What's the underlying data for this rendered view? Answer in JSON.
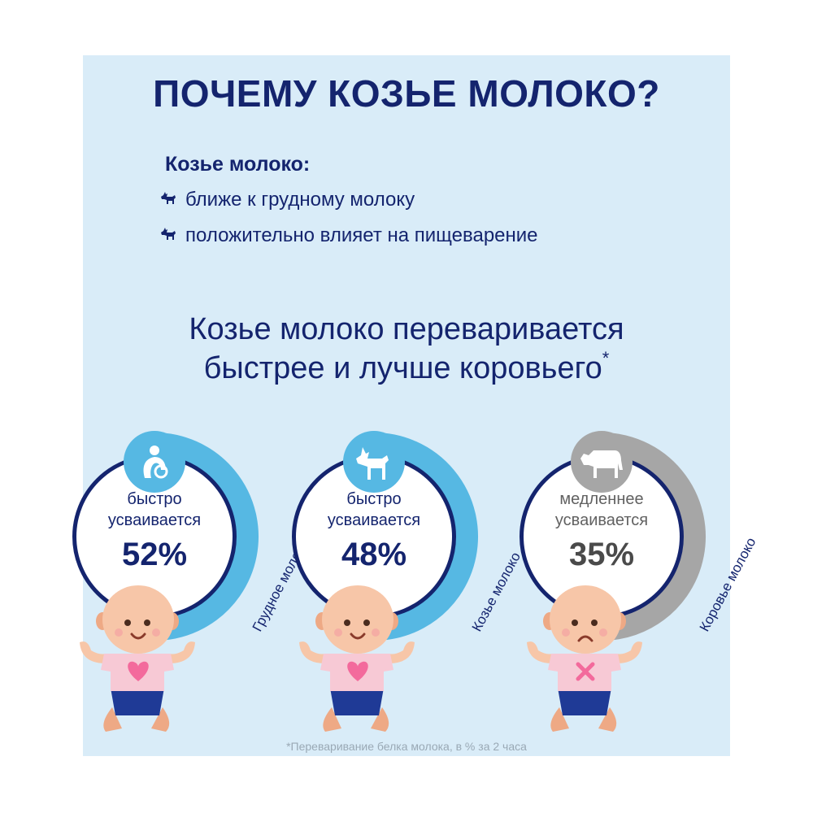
{
  "title": "ПОЧЕМУ КОЗЬЕ МОЛОКО?",
  "benefits": {
    "heading": "Козье молоко:",
    "items": [
      "ближе к грудному молоку",
      "положительно влияет на пищеварение"
    ]
  },
  "headline": {
    "line1": "Козье молоко переваривается",
    "line2": "быстрее и лучше коровьего",
    "mark": "*"
  },
  "comparisons": [
    {
      "line1": "быстро",
      "line2": "усваивается",
      "percent": "52%",
      "value": 52,
      "label": "Грудное молоко",
      "icon": "breastfeeding-icon",
      "color": "#56b8e3",
      "face": "happy",
      "shirt": "heart"
    },
    {
      "line1": "быстро",
      "line2": "усваивается",
      "percent": "48%",
      "value": 48,
      "label": "Козье молоко",
      "icon": "goat-icon",
      "color": "#56b8e3",
      "face": "happy",
      "shirt": "heart"
    },
    {
      "line1": "медленнее",
      "line2": "усваивается",
      "percent": "35%",
      "value": 35,
      "label": "Коровье молоко",
      "icon": "cow-icon",
      "color": "#a6a6a6",
      "face": "sad",
      "shirt": "cross"
    }
  ],
  "footnote": "*Переваривание белка молока, в % за 2 часа",
  "colors": {
    "navy": "#14246e",
    "background": "#d9ecf8",
    "accent_blue": "#56b8e3",
    "gray": "#a6a6a6",
    "heart_pink": "#f36a9c"
  }
}
